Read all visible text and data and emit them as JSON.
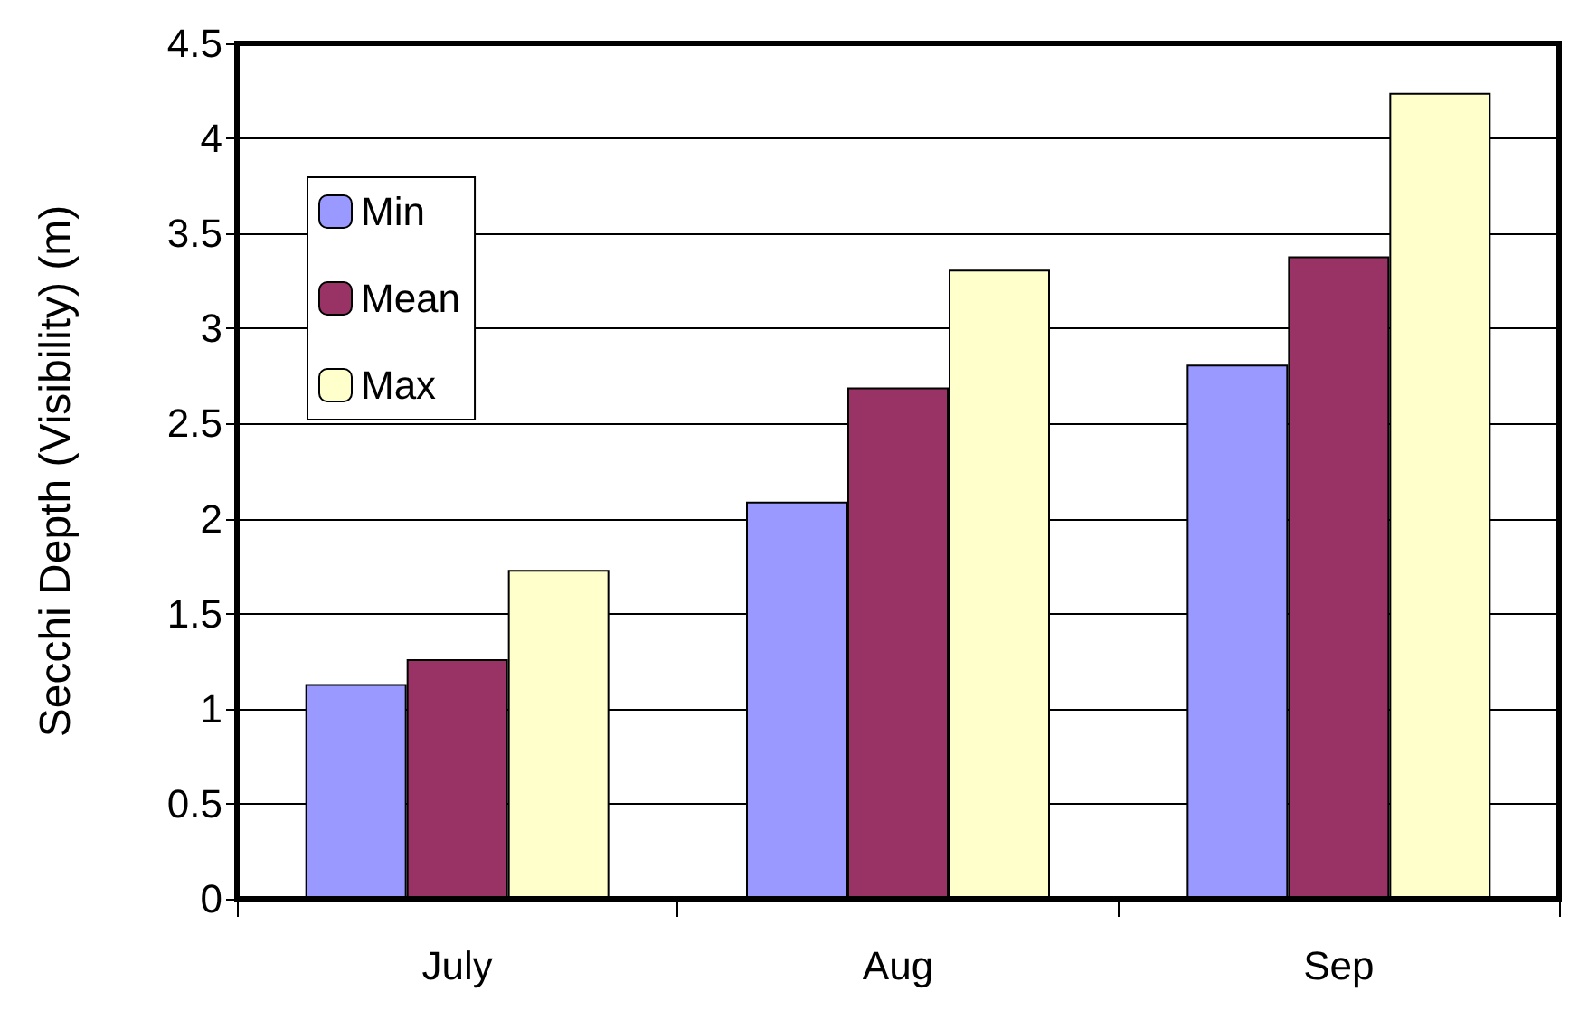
{
  "chart_data": {
    "type": "bar",
    "ylabel": "Secchi Depth (Visibility) (m)",
    "categories": [
      "July",
      "Aug",
      "Sep"
    ],
    "series": [
      {
        "name": "Min",
        "color": "#9999ff",
        "values": [
          1.13,
          2.09,
          2.81
        ]
      },
      {
        "name": "Mean",
        "color": "#993366",
        "values": [
          1.26,
          2.69,
          3.38
        ]
      },
      {
        "name": "Max",
        "color": "#ffffcc",
        "values": [
          1.73,
          3.31,
          4.24
        ]
      }
    ],
    "ylim": [
      0,
      4.5
    ],
    "yticks": [
      0,
      0.5,
      1,
      1.5,
      2,
      2.5,
      3,
      3.5,
      4,
      4.5
    ],
    "grid": "y",
    "legend": "top left"
  }
}
